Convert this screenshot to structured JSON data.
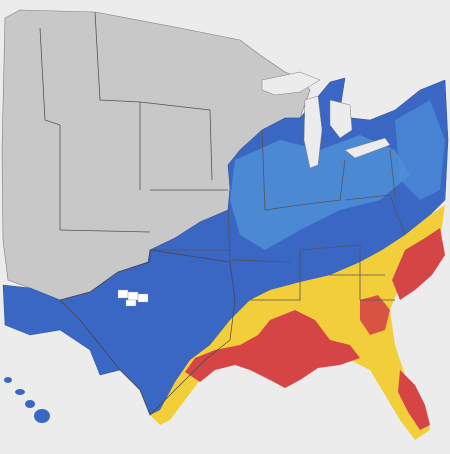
{
  "map": {
    "type": "choropleth",
    "region": "contiguous-us-counties",
    "colors": {
      "background": "#ececec",
      "no_data": "#c8c8c8",
      "low": "#3a66c4",
      "light_blue": "#4f8fd8",
      "medium": "#f2cf3a",
      "high": "#d64545",
      "white": "#ffffff",
      "border": "#7f7f7f"
    },
    "category_colors": [
      "#c8c8c8",
      "#3a66c4",
      "#4f8fd8",
      "#f2cf3a",
      "#d64545",
      "#ffffff"
    ],
    "insets": [
      "hawaii"
    ]
  }
}
